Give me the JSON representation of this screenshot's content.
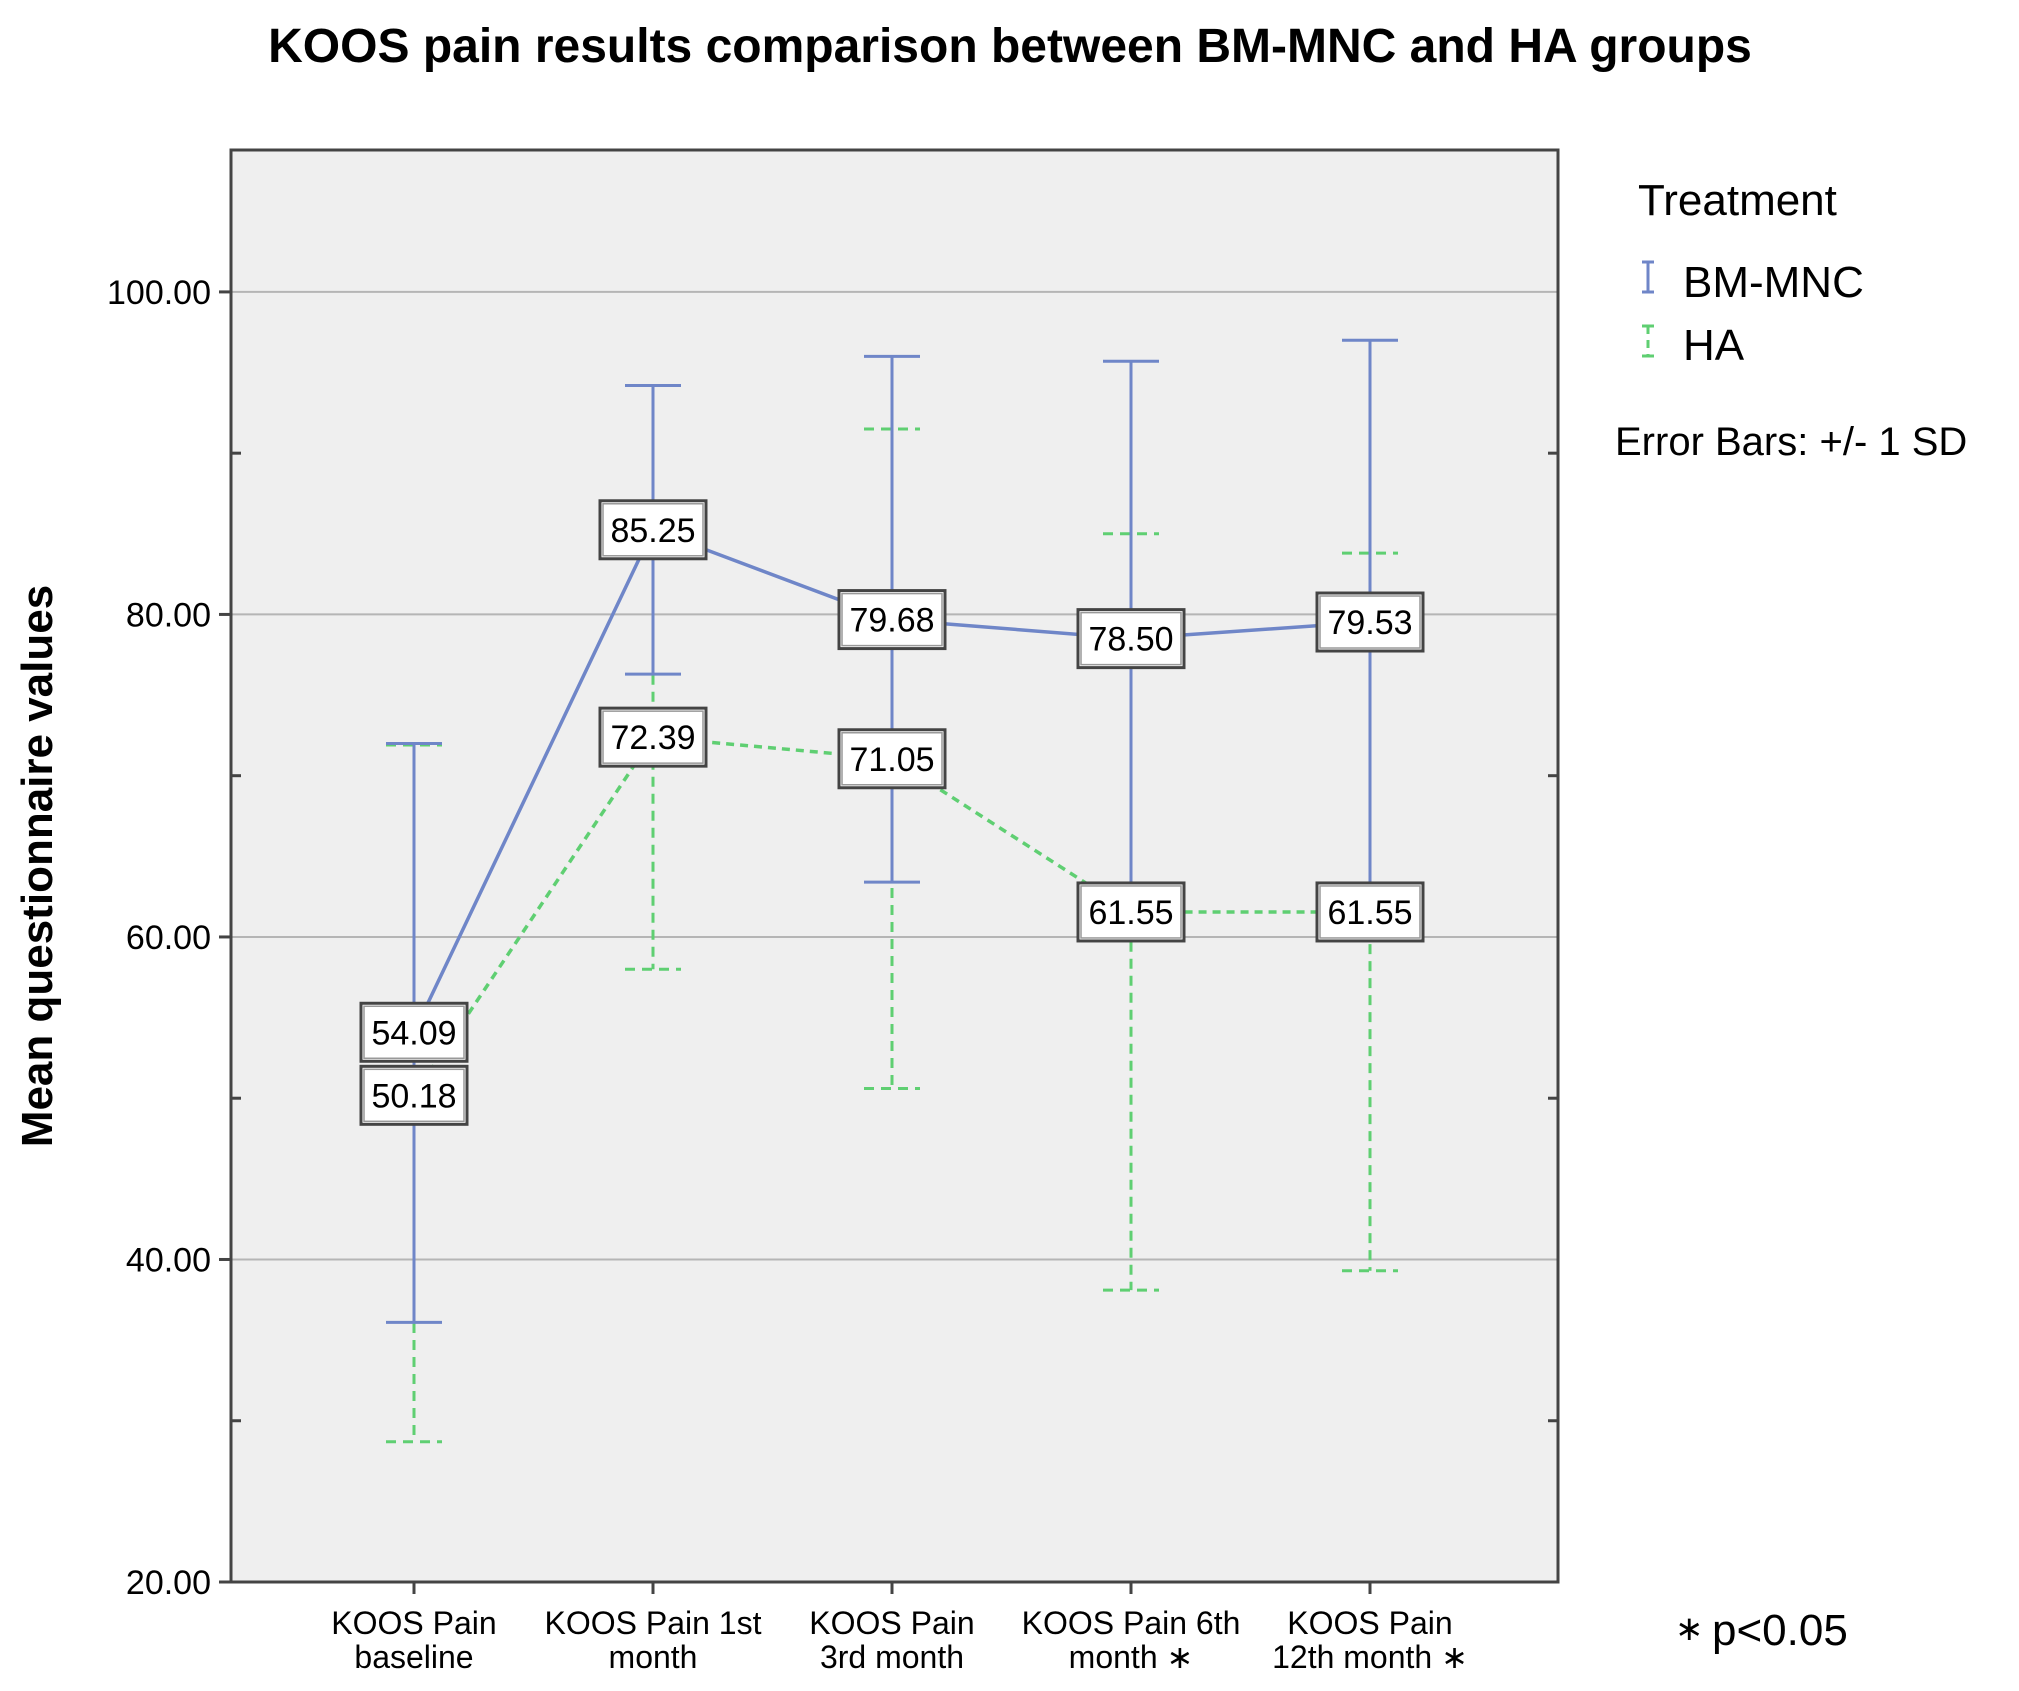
{
  "chart_data": {
    "type": "line",
    "title": "KOOS pain results comparison between BM-MNC and HA groups",
    "ylabel": "Mean questionnaire values",
    "xlabel": "",
    "ylim": [
      20,
      108.8
    ],
    "yticks": [
      20,
      40,
      60,
      80,
      100
    ],
    "ytick_labels": [
      "20.00",
      "40.00",
      "60.00",
      "80.00",
      "100.00"
    ],
    "grid": true,
    "categories": [
      [
        "KOOS Pain",
        "baseline"
      ],
      [
        "KOOS Pain 1st",
        "month"
      ],
      [
        "KOOS Pain",
        "3rd month"
      ],
      [
        "KOOS Pain 6th",
        "month ∗"
      ],
      [
        "KOOS Pain",
        "12th month ∗"
      ]
    ],
    "legend": {
      "title": "Treatment",
      "position": "right",
      "error_bar_note": "Error Bars: +/- 1 SD"
    },
    "series": [
      {
        "name": "BM-MNC",
        "color": "#6f86c8",
        "style": "solid",
        "values": [
          54.09,
          85.25,
          79.68,
          78.5,
          79.53
        ],
        "labels": [
          "54.09",
          "85.25",
          "79.68",
          "78.50",
          "79.53"
        ],
        "err_low": [
          36.1,
          76.3,
          63.4,
          61.3,
          62.0
        ],
        "err_high": [
          72.0,
          94.2,
          96.0,
          95.7,
          97.0
        ]
      },
      {
        "name": "HA",
        "color": "#5fcf72",
        "style": "dashed",
        "values": [
          50.18,
          72.39,
          71.05,
          61.55,
          61.55
        ],
        "labels": [
          "50.18",
          "72.39",
          "71.05",
          "61.55",
          "61.55"
        ],
        "err_low": [
          28.7,
          58.0,
          50.6,
          38.1,
          39.3
        ],
        "err_high": [
          71.9,
          86.8,
          91.5,
          85.0,
          83.8
        ]
      }
    ],
    "footnote": "p<0.05",
    "footnote_symbol": "∗"
  }
}
